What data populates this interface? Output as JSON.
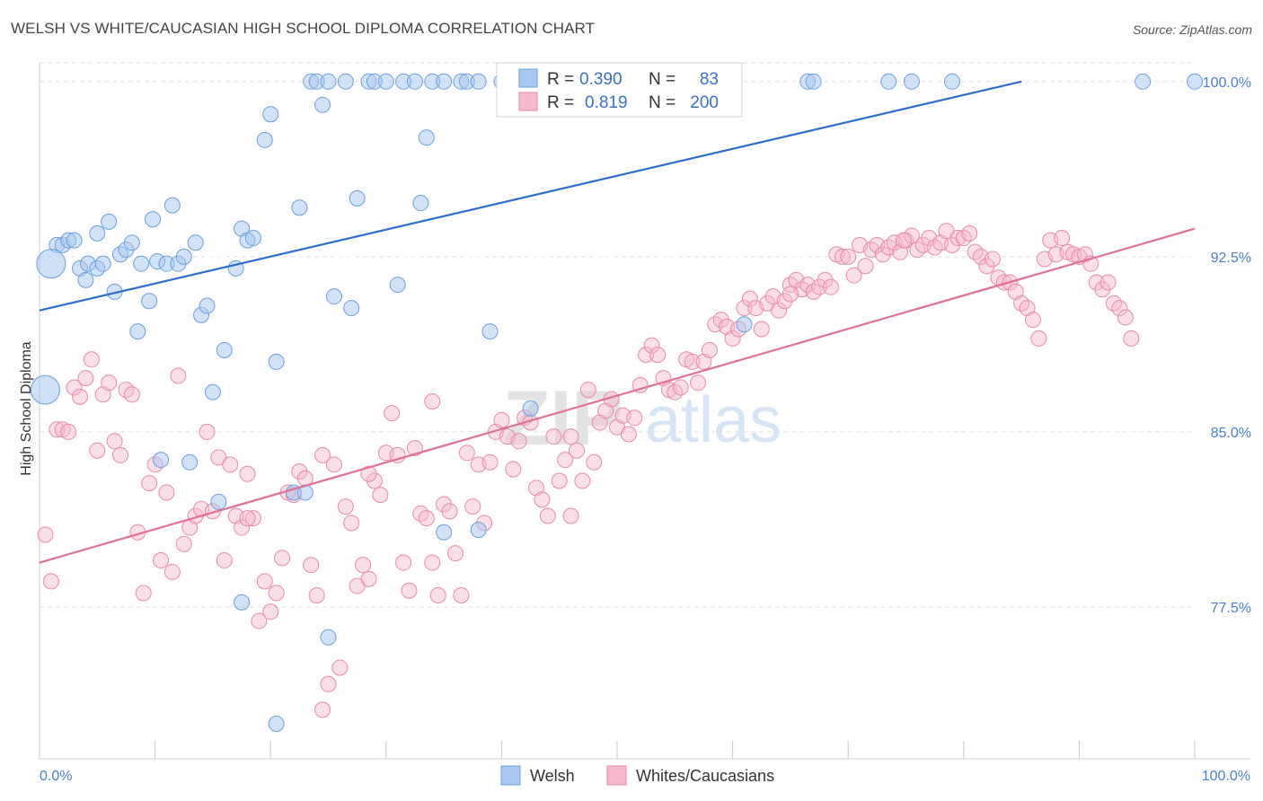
{
  "header": {
    "title": "WELSH VS WHITE/CAUCASIAN HIGH SCHOOL DIPLOMA CORRELATION CHART",
    "source": "Source: ZipAtlas.com"
  },
  "watermark": {
    "zip": "ZIP",
    "atlas": "atlas"
  },
  "legend": {
    "r_label": "R =",
    "n_label": "N =",
    "welsh": {
      "r": "0.390",
      "n": "83"
    },
    "white": {
      "r": "0.819",
      "n": "200"
    }
  },
  "chart_data": {
    "type": "scatter",
    "title": "WELSH VS WHITE/CAUCASIAN HIGH SCHOOL DIPLOMA CORRELATION CHART",
    "xlabel": "",
    "ylabel": "High School Diploma",
    "xlim": [
      0,
      100
    ],
    "ylim": [
      71.0,
      100.8
    ],
    "x_tick_labels": [
      "0.0%",
      "100.0%"
    ],
    "y_ticks": [
      77.5,
      85.0,
      92.5,
      100.0
    ],
    "y_tick_labels": [
      "77.5%",
      "85.0%",
      "92.5%",
      "100.0%"
    ],
    "grid": true,
    "legend_position": "top-center",
    "colors": {
      "welsh_fill": "#a8c8f0",
      "welsh_stroke": "#6a9fe0",
      "welsh_line": "#2a6fcc",
      "white_fill": "#f6b8cb",
      "white_stroke": "#e88aa8",
      "white_line": "#e0709a",
      "tick_label": "#4a7fd0",
      "grid": "#e2e2e2"
    },
    "series": [
      {
        "name": "Welsh",
        "trend": {
          "x": [
            0,
            85
          ],
          "y": [
            90.2,
            100.0
          ]
        },
        "points": [
          [
            1.5,
            93.0
          ],
          [
            2.0,
            93.0
          ],
          [
            2.5,
            93.2
          ],
          [
            3.0,
            93.2
          ],
          [
            3.5,
            92.0
          ],
          [
            4.0,
            91.5
          ],
          [
            4.2,
            92.2
          ],
          [
            5.0,
            92.0
          ],
          [
            5.0,
            93.5
          ],
          [
            5.5,
            92.2
          ],
          [
            6.0,
            94.0
          ],
          [
            6.5,
            91.0
          ],
          [
            7.0,
            92.6
          ],
          [
            7.5,
            92.8
          ],
          [
            8.0,
            93.1
          ],
          [
            8.5,
            89.3
          ],
          [
            8.8,
            92.2
          ],
          [
            9.5,
            90.6
          ],
          [
            9.8,
            94.1
          ],
          [
            10.2,
            92.3
          ],
          [
            11.0,
            92.2
          ],
          [
            11.5,
            94.7
          ],
          [
            12.0,
            92.2
          ],
          [
            12.5,
            92.5
          ],
          [
            13.5,
            93.1
          ],
          [
            14.0,
            90.0
          ],
          [
            14.5,
            90.4
          ],
          [
            15.0,
            86.7
          ],
          [
            16.0,
            88.5
          ],
          [
            17.0,
            92.0
          ],
          [
            17.5,
            93.7
          ],
          [
            18.0,
            93.2
          ],
          [
            18.5,
            93.3
          ],
          [
            19.5,
            97.5
          ],
          [
            20.0,
            98.6
          ],
          [
            20.5,
            88.0
          ],
          [
            22.5,
            94.6
          ],
          [
            23.5,
            100.0
          ],
          [
            24.0,
            100.0
          ],
          [
            24.5,
            99.0
          ],
          [
            25.0,
            100.0
          ],
          [
            25.5,
            90.8
          ],
          [
            26.5,
            100.0
          ],
          [
            27.0,
            90.3
          ],
          [
            27.5,
            95.0
          ],
          [
            28.5,
            100.0
          ],
          [
            29.0,
            100.0
          ],
          [
            30.0,
            100.0
          ],
          [
            31.0,
            91.3
          ],
          [
            31.5,
            100.0
          ],
          [
            32.5,
            100.0
          ],
          [
            33.0,
            94.8
          ],
          [
            33.5,
            97.6
          ],
          [
            34.0,
            100.0
          ],
          [
            35.0,
            100.0
          ],
          [
            36.5,
            100.0
          ],
          [
            37.0,
            100.0
          ],
          [
            38.0,
            100.0
          ],
          [
            39.0,
            89.3
          ],
          [
            40.0,
            100.0
          ],
          [
            42.0,
            100.0
          ],
          [
            44.5,
            100.0
          ],
          [
            47.0,
            100.0
          ],
          [
            48.0,
            100.0
          ],
          [
            61.0,
            89.6
          ],
          [
            66.5,
            100.0
          ],
          [
            67.0,
            100.0
          ],
          [
            73.5,
            100.0
          ],
          [
            75.5,
            100.0
          ],
          [
            79.0,
            100.0
          ],
          [
            95.5,
            100.0
          ],
          [
            100.0,
            100.0
          ],
          [
            10.5,
            83.8
          ],
          [
            13.0,
            83.7
          ],
          [
            15.5,
            82.0
          ],
          [
            22.0,
            82.4
          ],
          [
            23.0,
            82.4
          ],
          [
            35.0,
            80.7
          ],
          [
            38.0,
            80.8
          ],
          [
            17.5,
            77.7
          ],
          [
            25.0,
            76.2
          ],
          [
            20.5,
            72.5
          ],
          [
            42.5,
            86.0
          ]
        ],
        "large_points": [
          [
            1.0,
            92.2
          ],
          [
            0.5,
            86.8
          ]
        ]
      },
      {
        "name": "Whites/Caucasians",
        "trend": {
          "x": [
            0,
            100
          ],
          "y": [
            79.4,
            93.7
          ]
        },
        "points": [
          [
            0.5,
            80.6
          ],
          [
            1.0,
            78.6
          ],
          [
            1.5,
            85.1
          ],
          [
            2.0,
            85.1
          ],
          [
            2.5,
            85.0
          ],
          [
            3.0,
            86.9
          ],
          [
            3.5,
            86.5
          ],
          [
            4.0,
            87.3
          ],
          [
            4.5,
            88.1
          ],
          [
            5.0,
            84.2
          ],
          [
            5.5,
            86.6
          ],
          [
            6.0,
            87.1
          ],
          [
            6.5,
            84.6
          ],
          [
            7.0,
            84.0
          ],
          [
            7.5,
            86.8
          ],
          [
            8.0,
            86.6
          ],
          [
            8.5,
            80.7
          ],
          [
            9.0,
            78.1
          ],
          [
            9.5,
            82.8
          ],
          [
            10.0,
            83.6
          ],
          [
            10.5,
            79.5
          ],
          [
            11.0,
            82.4
          ],
          [
            11.5,
            79.0
          ],
          [
            12.0,
            87.4
          ],
          [
            12.5,
            80.2
          ],
          [
            13.0,
            80.9
          ],
          [
            13.5,
            81.4
          ],
          [
            14.0,
            81.7
          ],
          [
            14.5,
            85.0
          ],
          [
            15.0,
            81.6
          ],
          [
            15.5,
            83.9
          ],
          [
            16.0,
            79.5
          ],
          [
            16.5,
            83.6
          ],
          [
            17.0,
            81.4
          ],
          [
            17.5,
            80.9
          ],
          [
            18.0,
            83.2
          ],
          [
            18.5,
            81.3
          ],
          [
            19.0,
            76.9
          ],
          [
            19.5,
            78.6
          ],
          [
            20.0,
            77.3
          ],
          [
            20.5,
            78.1
          ],
          [
            21.0,
            79.6
          ],
          [
            21.5,
            82.4
          ],
          [
            22.0,
            82.3
          ],
          [
            22.5,
            83.3
          ],
          [
            23.0,
            83.0
          ],
          [
            23.5,
            79.3
          ],
          [
            24.0,
            78.0
          ],
          [
            24.5,
            73.1
          ],
          [
            25.0,
            74.2
          ],
          [
            25.5,
            83.6
          ],
          [
            26.0,
            74.9
          ],
          [
            26.5,
            81.8
          ],
          [
            27.0,
            81.1
          ],
          [
            27.5,
            78.4
          ],
          [
            28.0,
            79.3
          ],
          [
            28.5,
            78.7
          ],
          [
            29.0,
            82.9
          ],
          [
            29.5,
            82.3
          ],
          [
            30.0,
            84.1
          ],
          [
            30.5,
            85.8
          ],
          [
            31.0,
            84.0
          ],
          [
            31.5,
            79.4
          ],
          [
            32.0,
            78.2
          ],
          [
            32.5,
            84.3
          ],
          [
            33.0,
            81.5
          ],
          [
            33.5,
            81.3
          ],
          [
            34.0,
            79.4
          ],
          [
            34.5,
            78.0
          ],
          [
            35.0,
            81.9
          ],
          [
            35.5,
            81.6
          ],
          [
            36.0,
            79.8
          ],
          [
            36.5,
            78.0
          ],
          [
            37.0,
            84.1
          ],
          [
            37.5,
            81.8
          ],
          [
            38.0,
            83.6
          ],
          [
            38.5,
            81.1
          ],
          [
            39.0,
            83.7
          ],
          [
            39.5,
            85.0
          ],
          [
            40.0,
            85.5
          ],
          [
            40.5,
            84.8
          ],
          [
            41.0,
            83.4
          ],
          [
            41.5,
            84.6
          ],
          [
            42.0,
            85.6
          ],
          [
            42.5,
            85.4
          ],
          [
            43.0,
            82.6
          ],
          [
            43.5,
            82.1
          ],
          [
            44.0,
            81.4
          ],
          [
            44.5,
            84.8
          ],
          [
            45.0,
            82.9
          ],
          [
            45.5,
            83.8
          ],
          [
            46.0,
            84.8
          ],
          [
            46.5,
            84.2
          ],
          [
            47.0,
            82.9
          ],
          [
            47.5,
            86.8
          ],
          [
            48.0,
            83.7
          ],
          [
            48.5,
            85.4
          ],
          [
            49.0,
            85.9
          ],
          [
            49.5,
            86.4
          ],
          [
            50.0,
            85.2
          ],
          [
            50.5,
            85.7
          ],
          [
            51.0,
            84.9
          ],
          [
            51.5,
            85.6
          ],
          [
            52.0,
            87.0
          ],
          [
            52.5,
            88.3
          ],
          [
            53.0,
            88.7
          ],
          [
            53.5,
            88.3
          ],
          [
            54.0,
            87.3
          ],
          [
            54.5,
            86.8
          ],
          [
            55.0,
            86.7
          ],
          [
            55.5,
            86.9
          ],
          [
            56.0,
            88.1
          ],
          [
            56.5,
            88.0
          ],
          [
            57.0,
            87.1
          ],
          [
            57.5,
            88.0
          ],
          [
            58.0,
            88.5
          ],
          [
            58.5,
            89.6
          ],
          [
            59.0,
            89.8
          ],
          [
            59.5,
            89.5
          ],
          [
            60.0,
            89.0
          ],
          [
            60.5,
            89.4
          ],
          [
            61.0,
            90.3
          ],
          [
            61.5,
            90.7
          ],
          [
            62.0,
            90.3
          ],
          [
            62.5,
            89.4
          ],
          [
            63.0,
            90.5
          ],
          [
            63.5,
            90.8
          ],
          [
            64.0,
            90.2
          ],
          [
            64.5,
            90.6
          ],
          [
            65.0,
            91.3
          ],
          [
            65.5,
            91.5
          ],
          [
            66.0,
            91.1
          ],
          [
            66.5,
            91.3
          ],
          [
            67.0,
            91.0
          ],
          [
            67.5,
            91.2
          ],
          [
            68.0,
            91.5
          ],
          [
            68.5,
            91.2
          ],
          [
            69.0,
            92.6
          ],
          [
            69.5,
            92.5
          ],
          [
            70.0,
            92.5
          ],
          [
            70.5,
            91.7
          ],
          [
            71.0,
            93.0
          ],
          [
            71.5,
            92.1
          ],
          [
            72.0,
            92.8
          ],
          [
            72.5,
            93.0
          ],
          [
            73.0,
            92.6
          ],
          [
            73.5,
            92.9
          ],
          [
            74.0,
            93.1
          ],
          [
            74.5,
            92.7
          ],
          [
            75.0,
            93.2
          ],
          [
            75.5,
            93.4
          ],
          [
            76.0,
            92.8
          ],
          [
            76.5,
            93.0
          ],
          [
            77.0,
            93.3
          ],
          [
            77.5,
            92.9
          ],
          [
            78.0,
            93.1
          ],
          [
            78.5,
            93.6
          ],
          [
            79.0,
            93.0
          ],
          [
            79.5,
            93.3
          ],
          [
            80.0,
            93.3
          ],
          [
            80.5,
            93.5
          ],
          [
            81.0,
            92.7
          ],
          [
            81.5,
            92.5
          ],
          [
            82.0,
            92.1
          ],
          [
            82.5,
            92.4
          ],
          [
            83.0,
            91.6
          ],
          [
            83.5,
            91.4
          ],
          [
            84.0,
            91.4
          ],
          [
            84.5,
            91.0
          ],
          [
            85.0,
            90.5
          ],
          [
            85.5,
            90.3
          ],
          [
            86.0,
            89.8
          ],
          [
            86.5,
            89.0
          ],
          [
            87.0,
            92.4
          ],
          [
            87.5,
            93.2
          ],
          [
            88.0,
            92.6
          ],
          [
            88.5,
            93.3
          ],
          [
            89.0,
            92.7
          ],
          [
            89.5,
            92.6
          ],
          [
            90.0,
            92.5
          ],
          [
            90.5,
            92.6
          ],
          [
            91.0,
            92.2
          ],
          [
            91.5,
            91.4
          ],
          [
            92.0,
            91.1
          ],
          [
            92.5,
            91.4
          ],
          [
            93.0,
            90.5
          ],
          [
            93.5,
            90.3
          ],
          [
            94.0,
            89.9
          ],
          [
            94.5,
            89.0
          ],
          [
            18.0,
            81.3
          ],
          [
            24.5,
            84.0
          ],
          [
            34.0,
            86.3
          ],
          [
            28.5,
            83.2
          ],
          [
            46.0,
            81.4
          ],
          [
            65.0,
            90.9
          ],
          [
            74.8,
            93.2
          ]
        ]
      }
    ]
  },
  "bottom_legend": {
    "welsh": "Welsh",
    "white": "Whites/Caucasians"
  }
}
